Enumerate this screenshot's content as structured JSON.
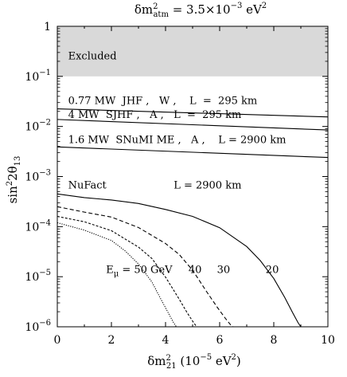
{
  "chart_data": {
    "type": "line",
    "title": {
      "text": "δm",
      "sub": "atm",
      "sup": "2",
      "rest": " = 3.5×10",
      "exp": "−3",
      "unit": " eV",
      "unit_sup": "2"
    },
    "xlabel": {
      "text": "δm",
      "sup": "2",
      "sub": "21",
      "rest": "  (10",
      "exp": "−5",
      "unit": " eV",
      "unit_sup": "2",
      "close": ")"
    },
    "ylabel": {
      "text": "sin",
      "sup": "2",
      "rest": "2θ",
      "sub": "13"
    },
    "xlim": [
      0,
      10
    ],
    "ylim": [
      1e-06,
      1
    ],
    "yscale": "log",
    "x_ticks": [
      0,
      2,
      4,
      6,
      8,
      10
    ],
    "x_tick_labels": [
      "0",
      "2",
      "4",
      "6",
      "8",
      "10"
    ],
    "y_ticks": [
      1e-06,
      1e-05,
      0.0001,
      0.001,
      0.01,
      0.1,
      1
    ],
    "y_tick_labels": [
      {
        "base": "10",
        "exp": "−6"
      },
      {
        "base": "10",
        "exp": "−5"
      },
      {
        "base": "10",
        "exp": "−4"
      },
      {
        "base": "10",
        "exp": "−3"
      },
      {
        "base": "10",
        "exp": "−2"
      },
      {
        "base": "10",
        "exp": "−1"
      },
      {
        "base": "1",
        "exp": ""
      }
    ],
    "excluded_region": {
      "label": "Excluded",
      "y_from": 0.1,
      "y_to": 1,
      "color": "#d9d9d9"
    },
    "series": [
      {
        "dash": "solid",
        "x": [
          0,
          10
        ],
        "y": [
          0.0225,
          0.0155
        ]
      },
      {
        "dash": "solid",
        "x": [
          0,
          10
        ],
        "y": [
          0.0138,
          0.0085
        ]
      },
      {
        "dash": "solid",
        "x": [
          0,
          10
        ],
        "y": [
          0.0039,
          0.0024
        ]
      },
      {
        "dash": "solid",
        "x": [
          0,
          1,
          2,
          3,
          4,
          5,
          6,
          7,
          7.5,
          8,
          8.4,
          8.7,
          8.9,
          9.0
        ],
        "y": [
          0.00045,
          0.00038,
          0.00034,
          0.00029,
          0.00022,
          0.00016,
          9.5e-05,
          4e-05,
          2.1e-05,
          9.2e-06,
          3.9e-06,
          1.9e-06,
          1.2e-06,
          1e-06
        ]
      },
      {
        "dash": "dashed",
        "x": [
          0,
          1,
          2,
          3,
          4,
          4.5,
          5,
          5.5,
          5.9,
          6.2,
          6.4,
          6.5
        ],
        "y": [
          0.00025,
          0.000195,
          0.000155,
          9.6e-05,
          4.6e-05,
          2.8e-05,
          1.35e-05,
          5.2e-06,
          2.5e-06,
          1.5e-06,
          1.1e-06,
          1e-06
        ]
      },
      {
        "dash": "densedash",
        "x": [
          0,
          1,
          2,
          3,
          3.5,
          4,
          4.5,
          4.8,
          5.0,
          5.15
        ],
        "y": [
          0.00016,
          0.000125,
          8.3e-05,
          3.9e-05,
          2.3e-05,
          9.8e-06,
          3.6e-06,
          1.9e-06,
          1.3e-06,
          1e-06
        ]
      },
      {
        "dash": "dotted",
        "x": [
          0,
          1,
          2,
          2.5,
          3,
          3.5,
          3.8,
          4.1,
          4.3,
          4.4
        ],
        "y": [
          0.00012,
          8.5e-05,
          5.3e-05,
          3.3e-05,
          1.8e-05,
          7.8e-06,
          3.8e-06,
          1.9e-06,
          1.2e-06,
          1e-06
        ]
      }
    ],
    "annotations": [
      {
        "id": "jhf",
        "text": "0.77 MW  JHF ,   W ,    L  =  295 km",
        "x": 0.4,
        "y": 0.028
      },
      {
        "id": "sjhf",
        "text": "4 MW  SJHF ,   A ,   L  =  295 km",
        "x": 0.4,
        "y": 0.0148
      },
      {
        "id": "snumi",
        "text": "1.6 MW  SNuMI ME ,   A ,    L = 2900 km",
        "x": 0.4,
        "y": 0.0047
      },
      {
        "id": "nufact",
        "text": "NuFact",
        "x": 0.4,
        "y": 0.00058
      },
      {
        "id": "nufact-l",
        "text": "L = 2900 km",
        "x": 4.3,
        "y": 0.00058
      },
      {
        "id": "e20",
        "text": "20",
        "x": 7.7,
        "y": 1.18e-05
      },
      {
        "id": "e30",
        "text": "30",
        "x": 5.9,
        "y": 1.18e-05
      },
      {
        "id": "e40",
        "text": "40",
        "x": 4.85,
        "y": 1.18e-05
      }
    ],
    "energy_label": {
      "text": "E",
      "sub": "μ",
      "rest": " = 50 GeV",
      "x": 1.8,
      "y": 1.18e-05
    }
  }
}
